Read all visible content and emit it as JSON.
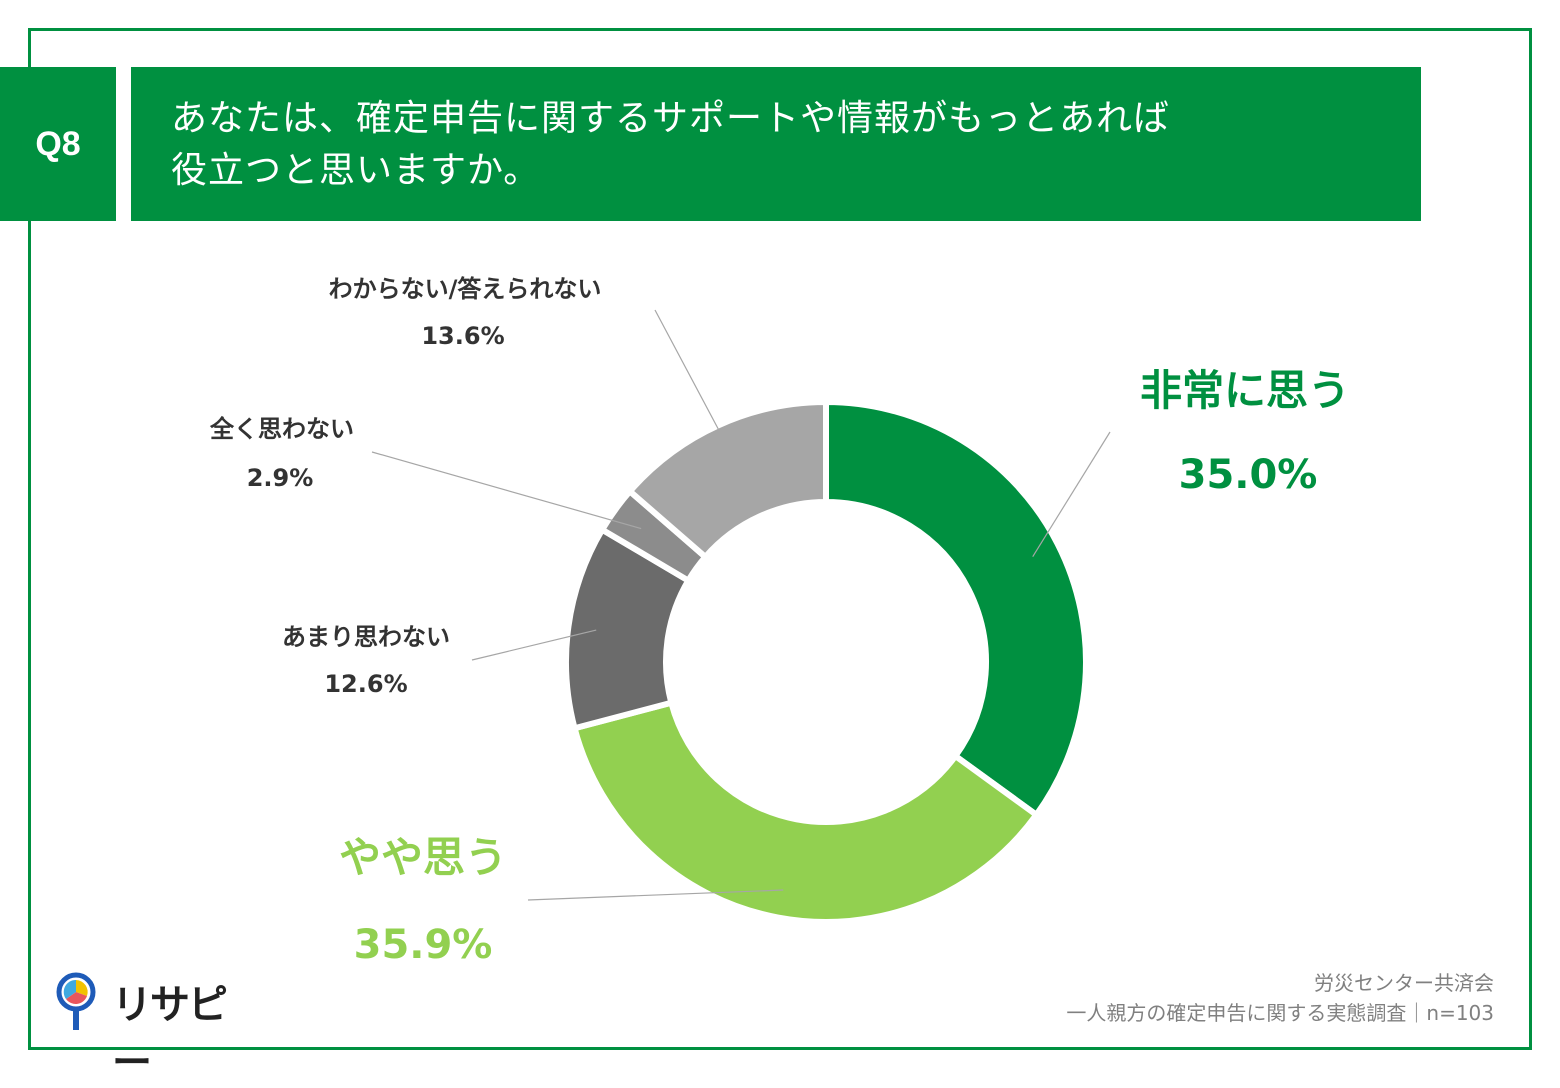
{
  "question": {
    "number": "Q8",
    "line1": "あなたは、確定申告に関するサポートや情報がもっとあれば",
    "line2": "役立つと思いますか。"
  },
  "chart_data": {
    "type": "pie",
    "subtype": "donut",
    "categories": [
      "非常に思う",
      "やや思う",
      "あまり思わない",
      "全く思わない",
      "わからない/答えられない"
    ],
    "values": [
      35.0,
      35.9,
      12.6,
      2.9,
      13.6
    ],
    "value_labels": [
      "35.0%",
      "35.9%",
      "12.6%",
      "2.9%",
      "13.6%"
    ],
    "colors": [
      "#009040",
      "#92D050",
      "#6B6B6B",
      "#8C8C8C",
      "#A6A6A6"
    ],
    "label_colors": [
      "#009040",
      "#92D050",
      "#333333",
      "#333333",
      "#333333"
    ]
  },
  "source": {
    "line1": "労災センター共済会",
    "line2": "一人親方の確定申告に関する実態調査｜n=103"
  },
  "logo": {
    "text": "リサピー"
  },
  "colors": {
    "frame": "#009040",
    "leader": "#A6A6A6"
  }
}
